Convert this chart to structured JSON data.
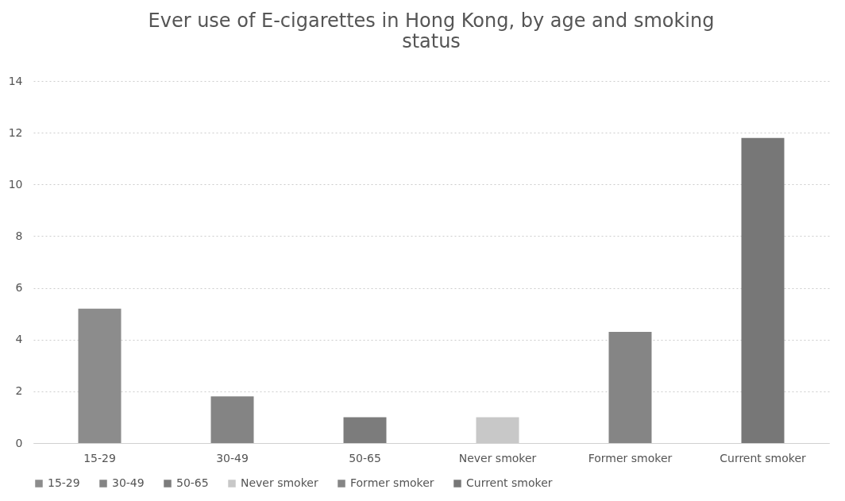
{
  "chart_data": {
    "type": "bar",
    "title": "Ever use of E-cigarettes in Hong Kong, by age and smoking status",
    "categories": [
      "15-29",
      "30-49",
      "50-65",
      "Never smoker",
      "Former smoker",
      "Current smoker"
    ],
    "series": [
      {
        "name": "15-29",
        "color": "#8c8c8c",
        "values": [
          5.2,
          null,
          null,
          null,
          null,
          null
        ]
      },
      {
        "name": "30-49",
        "color": "#848484",
        "values": [
          null,
          1.8,
          null,
          null,
          null,
          null
        ]
      },
      {
        "name": "50-65",
        "color": "#7c7c7c",
        "values": [
          null,
          null,
          1.0,
          null,
          null,
          null
        ]
      },
      {
        "name": "Never smoker",
        "color": "#c8c8c8",
        "values": [
          null,
          null,
          null,
          1.0,
          null,
          null
        ]
      },
      {
        "name": "Former smoker",
        "color": "#858585",
        "values": [
          null,
          null,
          null,
          null,
          4.3,
          null
        ]
      },
      {
        "name": "Current smoker",
        "color": "#777777",
        "values": [
          null,
          null,
          null,
          null,
          null,
          11.8
        ]
      }
    ],
    "ylim": [
      0,
      14
    ],
    "yticks": [
      0,
      2,
      4,
      6,
      8,
      10,
      12,
      14
    ],
    "grid": "y",
    "legend": "bottom"
  }
}
